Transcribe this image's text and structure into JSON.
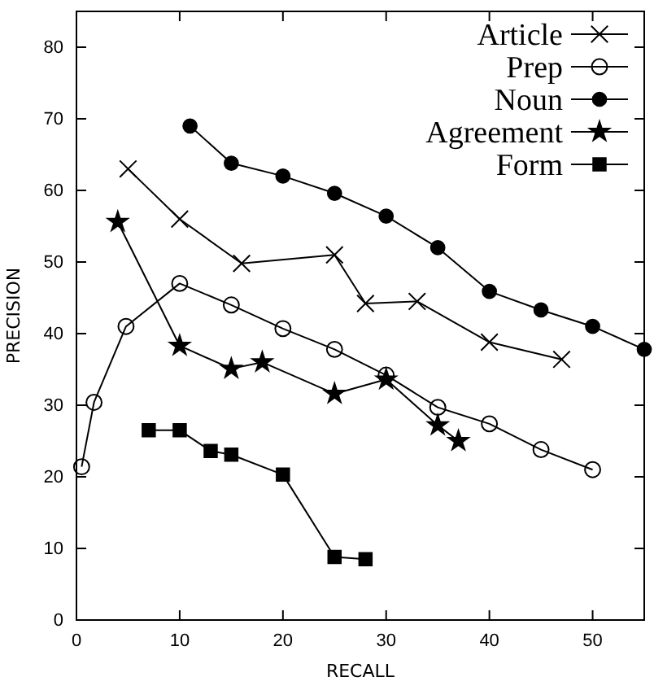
{
  "chart_data": {
    "type": "line",
    "xlabel": "RECALL",
    "ylabel": "PRECISION",
    "xlim": [
      0,
      55
    ],
    "ylim": [
      0,
      85
    ],
    "xticks": [
      0,
      10,
      20,
      30,
      40,
      50
    ],
    "yticks": [
      0,
      10,
      20,
      30,
      40,
      50,
      60,
      70,
      80
    ],
    "grid": false,
    "legend": "top right",
    "series": [
      {
        "name": "Article",
        "color": "#000000",
        "marker": "cross",
        "x": [
          5,
          10,
          16,
          25,
          28,
          33,
          40,
          47
        ],
        "values": [
          63,
          56,
          49.8,
          51,
          44.2,
          44.5,
          38.8,
          36.4
        ]
      },
      {
        "name": "Prep",
        "color": "#000000",
        "marker": "circle",
        "x": [
          0.5,
          1.7,
          4.8,
          10,
          15,
          20,
          25,
          30,
          35,
          40,
          45,
          50
        ],
        "values": [
          21.4,
          30.4,
          41,
          47,
          44,
          40.7,
          37.8,
          34.2,
          29.7,
          27.4,
          23.8,
          21
        ]
      },
      {
        "name": "Noun",
        "color": "#000000",
        "marker": "circle",
        "x": [
          11,
          15,
          20,
          25,
          30,
          35,
          40,
          45,
          50,
          55
        ],
        "values": [
          69,
          63.8,
          62,
          59.6,
          56.4,
          52,
          45.9,
          43.3,
          41,
          37.8
        ]
      },
      {
        "name": "Agreement",
        "color": "#000000",
        "marker": "star",
        "x": [
          4,
          10,
          15,
          18,
          25,
          30,
          35,
          37
        ],
        "values": [
          55.6,
          38.3,
          35.1,
          36,
          31.6,
          33.6,
          27.2,
          25
        ]
      },
      {
        "name": "Form",
        "color": "#000000",
        "marker": "square",
        "x": [
          7,
          10,
          13,
          15,
          20,
          25,
          28
        ],
        "values": [
          26.5,
          26.5,
          23.6,
          23.1,
          20.3,
          8.8,
          8.5
        ]
      }
    ]
  }
}
